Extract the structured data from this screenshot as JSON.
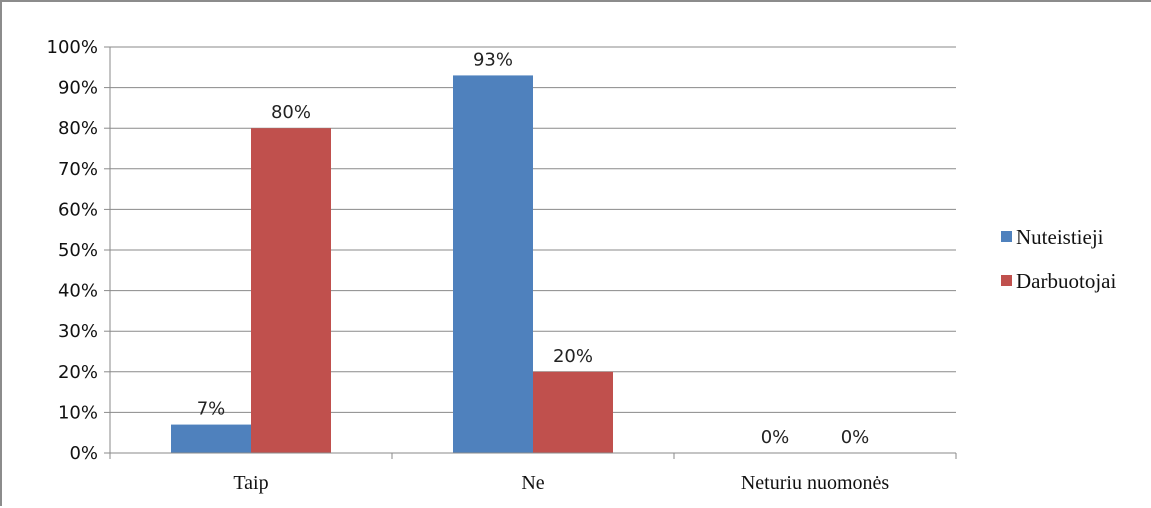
{
  "chart_data": {
    "type": "bar",
    "categories": [
      "Taip",
      "Ne",
      "Neturiu nuomonės"
    ],
    "series": [
      {
        "name": "Nuteistieji",
        "values": [
          7,
          93,
          0
        ],
        "labels": [
          "7%",
          "93%",
          "0%"
        ],
        "color": "#4f81bd"
      },
      {
        "name": "Darbuotojai",
        "values": [
          80,
          20,
          0
        ],
        "labels": [
          "80%",
          "20%",
          "0%"
        ],
        "color": "#c0504d"
      }
    ],
    "yticks": [
      "0%",
      "10%",
      "20%",
      "30%",
      "40%",
      "50%",
      "60%",
      "70%",
      "80%",
      "90%",
      "100%"
    ],
    "ylim": [
      0,
      100
    ],
    "grid": true,
    "legend_position": "right"
  }
}
